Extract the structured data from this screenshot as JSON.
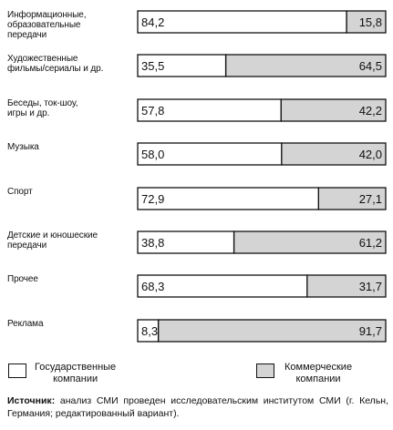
{
  "chart_data": {
    "type": "bar",
    "orientation": "horizontal",
    "stacked": true,
    "categories": [
      "Информационные, образовательные передачи",
      "Художественные фильмы/сериалы и др.",
      "Беседы, ток-шоу, игры и др.",
      "Музыка",
      "Спорт",
      "Детские и юношеские передачи",
      "Прочее",
      "Реклама"
    ],
    "category_lines": [
      [
        "Информационные,",
        "образовательные",
        "передачи"
      ],
      [
        "Художественные",
        "фильмы/сериалы и др."
      ],
      [
        "Беседы, ток-шоу,",
        "игры и др."
      ],
      [
        "Музыка"
      ],
      [
        "Спорт"
      ],
      [
        "Детские и юношеские",
        "передачи"
      ],
      [
        "Прочее"
      ],
      [
        "Реклама"
      ]
    ],
    "series": [
      {
        "name": "Государственные компании",
        "values": [
          84.2,
          35.5,
          57.8,
          58.0,
          72.9,
          38.8,
          68.3,
          8.3
        ],
        "labels": [
          "84,2",
          "35,5",
          "57,8",
          "58,0",
          "72,9",
          "38,8",
          "68,3",
          "8,3"
        ],
        "color": "#ffffff"
      },
      {
        "name": "Коммерческие компании",
        "values": [
          15.8,
          64.5,
          42.2,
          42.0,
          27.1,
          61.2,
          31.7,
          91.7
        ],
        "labels": [
          "15,8",
          "64,5",
          "42,2",
          "42,0",
          "27,1",
          "61,2",
          "31,7",
          "91,7"
        ],
        "color": "#d4d4d4"
      }
    ],
    "xlim": [
      0,
      100
    ],
    "grid": false,
    "legend_position": "bottom"
  },
  "legend": {
    "state": [
      "Государственные",
      "компании"
    ],
    "commercial": [
      "Коммерческие",
      "компании"
    ]
  },
  "source": {
    "head": "Источник:",
    "text": " анализ СМИ проведен исследовательским институтом СМИ (г. Кельн, Германия; редактированный вариант)."
  },
  "colors": {
    "outline": "#111111",
    "commercial_fill": "#d4d4d4",
    "state_fill": "#ffffff"
  }
}
